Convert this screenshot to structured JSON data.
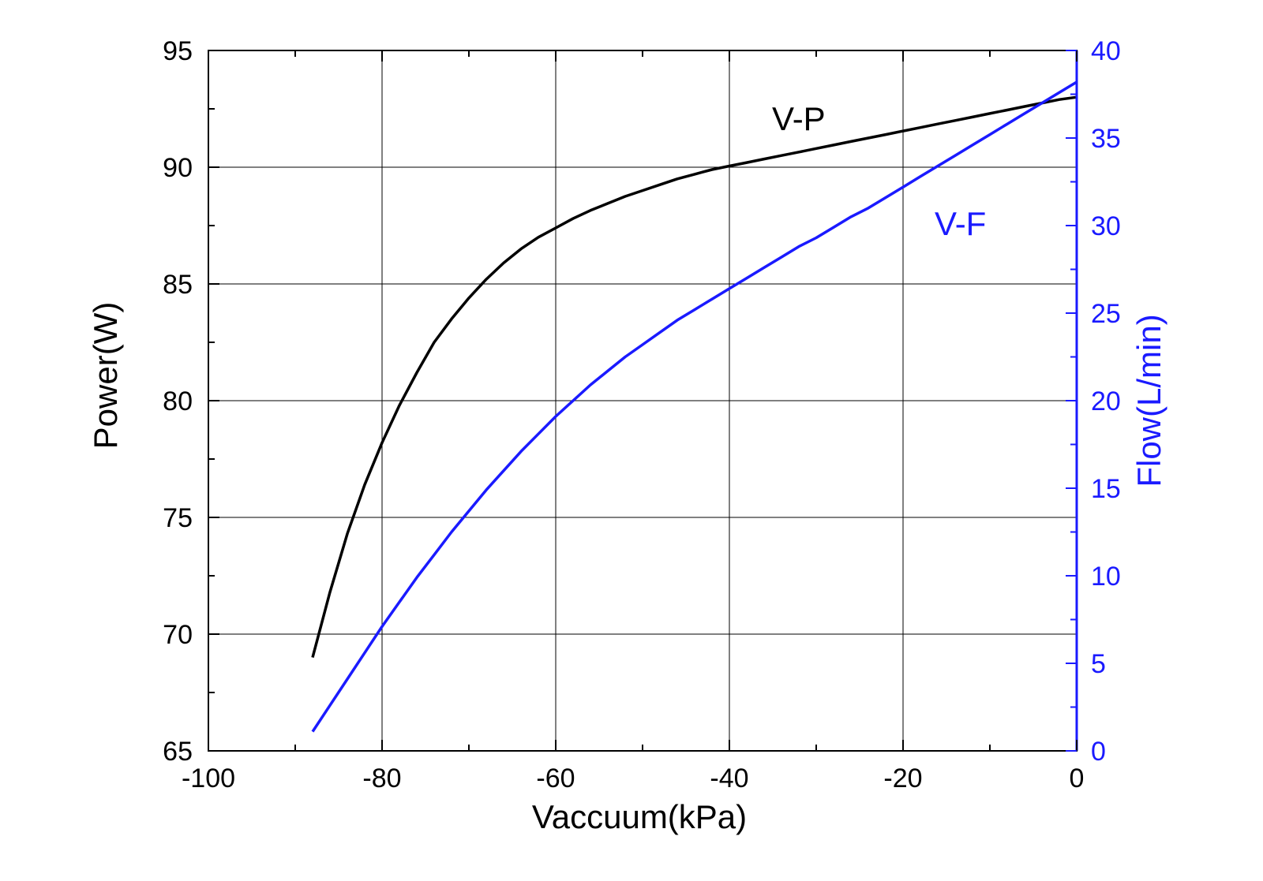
{
  "chart_data": {
    "type": "line",
    "xlabel": "Vaccuum(kPa)",
    "ylabel_left": "Power(W)",
    "ylabel_right": "Flow(L/min)",
    "xlim": [
      -100,
      0
    ],
    "ylim_left": [
      65,
      95
    ],
    "ylim_right": [
      0,
      40
    ],
    "x_ticks": [
      -100,
      -80,
      -60,
      -40,
      -20,
      0
    ],
    "y_left_ticks": [
      65,
      70,
      75,
      80,
      85,
      90,
      95
    ],
    "y_right_ticks": [
      0,
      5,
      10,
      15,
      20,
      25,
      30,
      35,
      40
    ],
    "grid": true,
    "colors": {
      "left_axis": "#000000",
      "right_axis": "#1a1aff"
    },
    "series": [
      {
        "name": "V-P",
        "axis": "left",
        "color": "#000000",
        "x": [
          -88,
          -86,
          -84,
          -82,
          -80,
          -78,
          -76,
          -74,
          -72,
          -70,
          -68,
          -66,
          -64,
          -62,
          -60,
          -58,
          -56,
          -54,
          -52,
          -50,
          -48,
          -46,
          -44,
          -42,
          -40,
          -38,
          -36,
          -34,
          -32,
          -30,
          -28,
          -26,
          -24,
          -22,
          -20,
          -18,
          -16,
          -14,
          -12,
          -10,
          -8,
          -6,
          -4,
          -2,
          0
        ],
        "y": [
          69.0,
          71.8,
          74.3,
          76.4,
          78.2,
          79.8,
          81.2,
          82.5,
          83.5,
          84.4,
          85.2,
          85.9,
          86.5,
          87.0,
          87.4,
          87.8,
          88.15,
          88.45,
          88.75,
          89.0,
          89.25,
          89.5,
          89.7,
          89.9,
          90.05,
          90.2,
          90.35,
          90.5,
          90.65,
          90.8,
          90.95,
          91.1,
          91.25,
          91.4,
          91.55,
          91.7,
          91.85,
          92.0,
          92.15,
          92.3,
          92.45,
          92.6,
          92.75,
          92.9,
          93.0
        ]
      },
      {
        "name": "V-F",
        "axis": "right",
        "color": "#1a1aff",
        "x": [
          -88,
          -86,
          -84,
          -82,
          -80,
          -78,
          -76,
          -74,
          -72,
          -70,
          -68,
          -66,
          -64,
          -62,
          -60,
          -58,
          -56,
          -54,
          -52,
          -50,
          -48,
          -46,
          -44,
          -42,
          -40,
          -38,
          -36,
          -34,
          -32,
          -30,
          -28,
          -26,
          -24,
          -22,
          -20,
          -18,
          -16,
          -14,
          -12,
          -10,
          -8,
          -6,
          -4,
          -2,
          0
        ],
        "y": [
          1.1,
          2.6,
          4.1,
          5.6,
          7.1,
          8.5,
          9.9,
          11.2,
          12.5,
          13.7,
          14.9,
          16.0,
          17.1,
          18.1,
          19.1,
          20.0,
          20.9,
          21.7,
          22.5,
          23.2,
          23.9,
          24.6,
          25.2,
          25.8,
          26.4,
          27.0,
          27.6,
          28.2,
          28.8,
          29.3,
          29.9,
          30.5,
          31.0,
          31.6,
          32.2,
          32.8,
          33.4,
          34.0,
          34.6,
          35.2,
          35.8,
          36.4,
          37.0,
          37.6,
          38.2
        ]
      }
    ]
  }
}
